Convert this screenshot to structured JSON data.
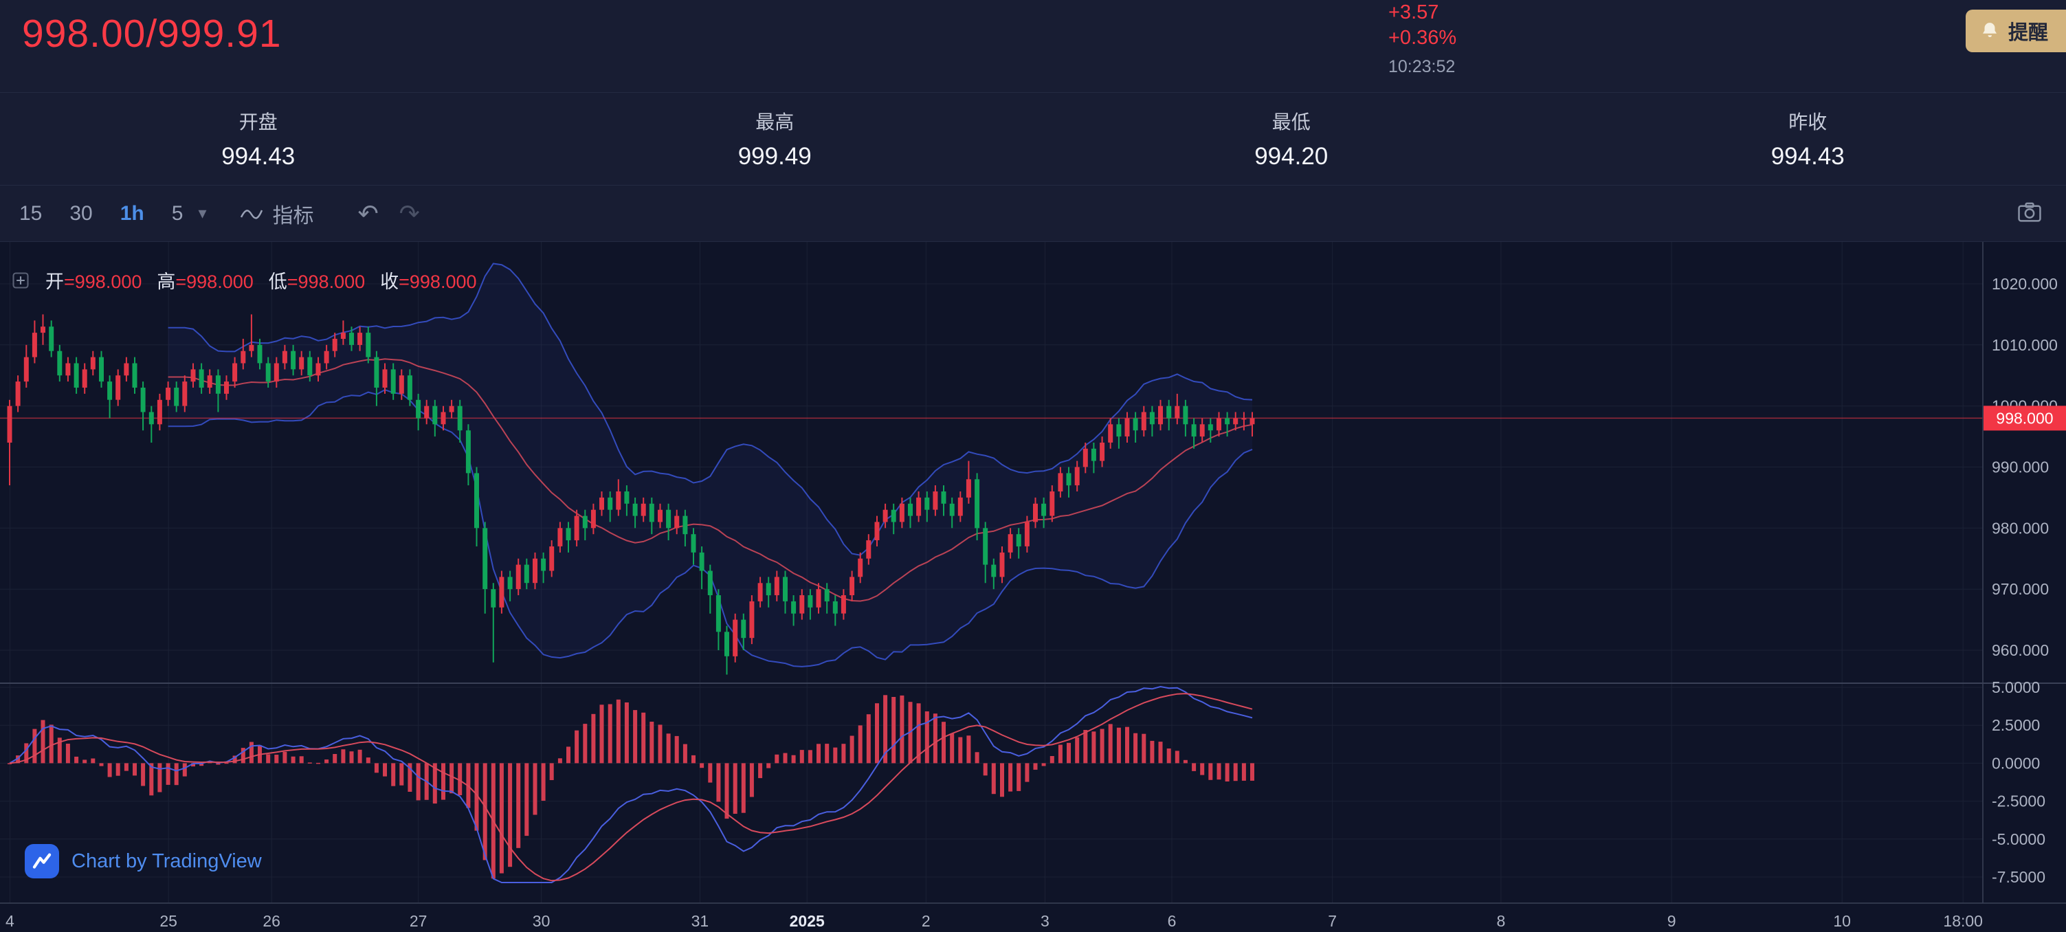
{
  "header": {
    "price_pair": "998.00/999.91",
    "change": "+3.57",
    "change_pct": "+0.36%",
    "time": "10:23:52",
    "alert_label": "提醒"
  },
  "stats": {
    "items": [
      {
        "label": "开盘",
        "value": "994.43"
      },
      {
        "label": "最高",
        "value": "999.49"
      },
      {
        "label": "最低",
        "value": "994.20"
      },
      {
        "label": "昨收",
        "value": "994.43"
      }
    ]
  },
  "toolbar": {
    "timeframes": [
      {
        "label": "15"
      },
      {
        "label": "30"
      },
      {
        "label": "1h"
      },
      {
        "label": "5"
      }
    ],
    "indicator_label": "指标"
  },
  "legend": {
    "items": [
      {
        "label": "开",
        "value": "=998.000"
      },
      {
        "label": "高",
        "value": "=998.000"
      },
      {
        "label": "低",
        "value": "=998.000"
      },
      {
        "label": "收",
        "value": "=998.000"
      }
    ]
  },
  "attribution": "Chart by TradingView",
  "chart_data": {
    "type": "candlestick",
    "interval": "1h",
    "convention": "red = up, green = down (CN)",
    "indicators": [
      "BOLL(20,2)",
      "MACD(12,26,9)"
    ],
    "current_price": "998.000",
    "colors": {
      "up": "#e23646",
      "down": "#10a65a",
      "boll_band": "#3a55d6",
      "boll_mid": "#d84a5c",
      "macd_hist": "#dd3f52",
      "macd_dif": "#4a5fe0",
      "macd_dea": "#d84a5c",
      "price_line": "#f23645"
    },
    "y_ticks": [
      "1020.000",
      "1010.000",
      "1000.000",
      "990.000",
      "980.000",
      "970.000",
      "960.000"
    ],
    "macd_ticks": [
      "5.0000",
      "2.5000",
      "0.0000",
      "-2.5000",
      "-5.0000",
      "-7.5000"
    ],
    "x_labels": [
      {
        "label": "4",
        "pos": 0.005
      },
      {
        "label": "25",
        "pos": 0.085
      },
      {
        "label": "26",
        "pos": 0.137
      },
      {
        "label": "27",
        "pos": 0.211
      },
      {
        "label": "30",
        "pos": 0.273
      },
      {
        "label": "31",
        "pos": 0.353
      },
      {
        "label": "2025",
        "pos": 0.407,
        "strong": true
      },
      {
        "label": "2",
        "pos": 0.467
      },
      {
        "label": "3",
        "pos": 0.527
      },
      {
        "label": "6",
        "pos": 0.591
      },
      {
        "label": "7",
        "pos": 0.672
      },
      {
        "label": "8",
        "pos": 0.757
      },
      {
        "label": "9",
        "pos": 0.843
      },
      {
        "label": "10",
        "pos": 0.929
      },
      {
        "label": "18:00",
        "pos": 0.99
      }
    ],
    "candles": [
      [
        994,
        1001,
        987,
        1000
      ],
      [
        1000,
        1005,
        999,
        1004
      ],
      [
        1004,
        1010,
        1003,
        1008
      ],
      [
        1008,
        1014,
        1007,
        1012
      ],
      [
        1012,
        1015,
        1010,
        1013
      ],
      [
        1013,
        1014,
        1008,
        1009
      ],
      [
        1009,
        1010,
        1004,
        1005
      ],
      [
        1005,
        1008,
        1004,
        1007
      ],
      [
        1007,
        1008,
        1002,
        1003
      ],
      [
        1003,
        1007,
        1002,
        1006
      ],
      [
        1006,
        1009,
        1005,
        1008
      ],
      [
        1008,
        1009,
        1003,
        1004
      ],
      [
        1004,
        1005,
        998,
        1001
      ],
      [
        1001,
        1006,
        1000,
        1005
      ],
      [
        1005,
        1008,
        1004,
        1007
      ],
      [
        1007,
        1008,
        1002,
        1003
      ],
      [
        1003,
        1004,
        996,
        999
      ],
      [
        999,
        1000,
        994,
        997
      ],
      [
        997,
        1002,
        996,
        1001
      ],
      [
        1001,
        1004,
        1000,
        1003
      ],
      [
        1003,
        1004,
        999,
        1000
      ],
      [
        1000,
        1005,
        999,
        1004
      ],
      [
        1004,
        1007,
        1003,
        1006
      ],
      [
        1006,
        1007,
        1002,
        1003
      ],
      [
        1003,
        1006,
        1002,
        1005
      ],
      [
        1005,
        1006,
        999,
        1002
      ],
      [
        1002,
        1005,
        1001,
        1004
      ],
      [
        1004,
        1008,
        1003,
        1007
      ],
      [
        1007,
        1011,
        1006,
        1009
      ],
      [
        1009,
        1015,
        1008,
        1010
      ],
      [
        1010,
        1011,
        1006,
        1007
      ],
      [
        1007,
        1008,
        1003,
        1004
      ],
      [
        1004,
        1008,
        1003,
        1007
      ],
      [
        1007,
        1010,
        1006,
        1009
      ],
      [
        1009,
        1010,
        1005,
        1006
      ],
      [
        1006,
        1009,
        1005,
        1008
      ],
      [
        1008,
        1009,
        1004,
        1005
      ],
      [
        1005,
        1008,
        1004,
        1007
      ],
      [
        1007,
        1010,
        1006,
        1009
      ],
      [
        1009,
        1012,
        1008,
        1011
      ],
      [
        1011,
        1014,
        1010,
        1012
      ],
      [
        1012,
        1013,
        1009,
        1010
      ],
      [
        1010,
        1013,
        1009,
        1012
      ],
      [
        1012,
        1013,
        1007,
        1008
      ],
      [
        1008,
        1009,
        1000,
        1003
      ],
      [
        1003,
        1007,
        1002,
        1006
      ],
      [
        1006,
        1007,
        1001,
        1002
      ],
      [
        1002,
        1006,
        1001,
        1005
      ],
      [
        1005,
        1006,
        1000,
        1001
      ],
      [
        1001,
        1002,
        996,
        998
      ],
      [
        998,
        1001,
        997,
        1000
      ],
      [
        1000,
        1001,
        995,
        997
      ],
      [
        997,
        1000,
        996,
        999
      ],
      [
        999,
        1001,
        998,
        1000
      ],
      [
        1000,
        1001,
        994,
        996
      ],
      [
        996,
        997,
        987,
        989
      ],
      [
        989,
        990,
        977,
        980
      ],
      [
        980,
        981,
        966,
        970
      ],
      [
        970,
        971,
        958,
        967
      ],
      [
        967,
        973,
        966,
        972
      ],
      [
        972,
        973,
        968,
        970
      ],
      [
        970,
        975,
        969,
        974
      ],
      [
        974,
        975,
        970,
        971
      ],
      [
        971,
        976,
        970,
        975
      ],
      [
        975,
        976,
        971,
        973
      ],
      [
        973,
        978,
        972,
        977
      ],
      [
        977,
        981,
        976,
        980
      ],
      [
        980,
        981,
        976,
        978
      ],
      [
        978,
        983,
        977,
        982
      ],
      [
        982,
        983,
        978,
        980
      ],
      [
        980,
        984,
        979,
        983
      ],
      [
        983,
        986,
        982,
        985
      ],
      [
        985,
        986,
        981,
        983
      ],
      [
        983,
        988,
        982,
        986
      ],
      [
        986,
        987,
        982,
        984
      ],
      [
        984,
        985,
        980,
        982
      ],
      [
        982,
        985,
        981,
        984
      ],
      [
        984,
        985,
        979,
        981
      ],
      [
        981,
        984,
        980,
        983
      ],
      [
        983,
        984,
        978,
        980
      ],
      [
        980,
        983,
        979,
        982
      ],
      [
        982,
        983,
        977,
        979
      ],
      [
        979,
        980,
        974,
        976
      ],
      [
        976,
        977,
        970,
        973
      ],
      [
        973,
        974,
        966,
        969
      ],
      [
        969,
        970,
        960,
        963
      ],
      [
        963,
        964,
        956,
        959
      ],
      [
        959,
        966,
        958,
        965
      ],
      [
        965,
        966,
        960,
        962
      ],
      [
        962,
        969,
        961,
        968
      ],
      [
        968,
        972,
        967,
        971
      ],
      [
        971,
        972,
        967,
        969
      ],
      [
        969,
        973,
        968,
        972
      ],
      [
        972,
        973,
        966,
        968
      ],
      [
        968,
        969,
        964,
        966
      ],
      [
        966,
        970,
        965,
        969
      ],
      [
        969,
        970,
        965,
        967
      ],
      [
        967,
        971,
        966,
        970
      ],
      [
        970,
        971,
        966,
        968
      ],
      [
        968,
        969,
        964,
        966
      ],
      [
        966,
        970,
        965,
        969
      ],
      [
        969,
        973,
        968,
        972
      ],
      [
        972,
        976,
        971,
        975
      ],
      [
        975,
        979,
        974,
        978
      ],
      [
        978,
        982,
        977,
        981
      ],
      [
        981,
        984,
        980,
        983
      ],
      [
        983,
        984,
        979,
        981
      ],
      [
        981,
        985,
        980,
        984
      ],
      [
        984,
        985,
        980,
        982
      ],
      [
        982,
        986,
        981,
        985
      ],
      [
        985,
        986,
        981,
        983
      ],
      [
        983,
        987,
        982,
        986
      ],
      [
        986,
        987,
        982,
        984
      ],
      [
        984,
        985,
        980,
        982
      ],
      [
        982,
        986,
        981,
        985
      ],
      [
        985,
        991,
        984,
        988
      ],
      [
        988,
        989,
        978,
        980
      ],
      [
        980,
        981,
        971,
        974
      ],
      [
        974,
        975,
        970,
        972
      ],
      [
        972,
        977,
        971,
        976
      ],
      [
        976,
        980,
        975,
        979
      ],
      [
        979,
        980,
        975,
        977
      ],
      [
        977,
        982,
        976,
        981
      ],
      [
        981,
        985,
        980,
        984
      ],
      [
        984,
        985,
        980,
        982
      ],
      [
        982,
        987,
        981,
        986
      ],
      [
        986,
        990,
        985,
        989
      ],
      [
        989,
        990,
        985,
        987
      ],
      [
        987,
        991,
        986,
        990
      ],
      [
        990,
        994,
        989,
        993
      ],
      [
        993,
        994,
        989,
        991
      ],
      [
        991,
        995,
        990,
        994
      ],
      [
        994,
        998,
        993,
        997
      ],
      [
        997,
        998,
        993,
        995
      ],
      [
        995,
        999,
        994,
        998
      ],
      [
        998,
        999,
        994,
        996
      ],
      [
        996,
        1000,
        995,
        999
      ],
      [
        999,
        1000,
        995,
        997
      ],
      [
        997,
        1001,
        996,
        1000
      ],
      [
        1000,
        1001,
        996,
        998
      ],
      [
        998,
        1002,
        997,
        1000
      ],
      [
        1000,
        1001,
        995,
        997
      ],
      [
        997,
        998,
        993,
        995
      ],
      [
        995,
        998,
        994,
        997
      ],
      [
        997,
        998,
        994,
        996
      ],
      [
        996,
        999,
        995,
        998
      ],
      [
        998,
        999,
        995,
        997
      ],
      [
        997,
        999,
        996,
        998
      ],
      [
        998,
        999,
        996,
        998
      ],
      [
        997,
        999,
        995,
        998
      ]
    ]
  }
}
